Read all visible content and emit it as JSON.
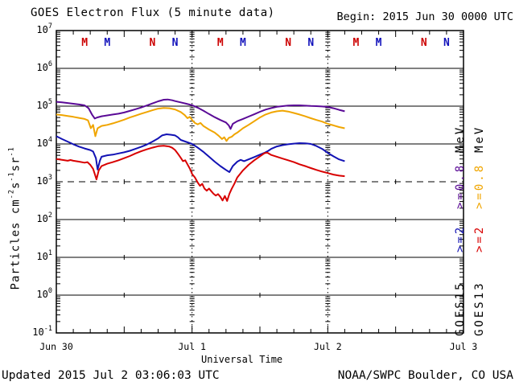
{
  "header": {
    "title": "GOES Electron Flux (5 minute data)",
    "begin_label": "Begin: 2015 Jun 30 0000 UTC"
  },
  "footer": {
    "updated": "Updated 2015 Jul  2 03:06:03 UTC",
    "source": "NOAA/SWPC Boulder, CO USA"
  },
  "legend": {
    "goes15": {
      "sat": "GOES15",
      "e2": ">=2",
      "e08": ">=0.8",
      "unit": "MeV"
    },
    "goes13": {
      "sat": "GOES13",
      "e2": ">=2",
      "e08": ">=0.8",
      "unit": "MeV"
    }
  },
  "chart_data": {
    "type": "line",
    "title": "GOES Electron Flux (5 minute data)",
    "xlabel": "Universal Time",
    "ylabel": "Particles cm-2 s-1 sr-1",
    "ylabel_parts": [
      {
        "t": "Particles cm",
        "sup": false
      },
      {
        "t": "-2",
        "sup": true
      },
      {
        "t": "s",
        "sup": false
      },
      {
        "t": "-1",
        "sup": true
      },
      {
        "t": "sr",
        "sup": false
      },
      {
        "t": "-1",
        "sup": true
      }
    ],
    "x_unit": "hours since 2015 Jun 30 0000 UTC",
    "xlim_hours": [
      0,
      72
    ],
    "y_scale": "log10",
    "ylim": [
      0.1,
      10000000
    ],
    "y_tick_exponents": [
      7,
      6,
      5,
      4,
      3,
      2,
      1,
      0,
      -1
    ],
    "solid_gridlines_log10": [
      6,
      5,
      4,
      2,
      1,
      0
    ],
    "dashed_gridlines_log10": [
      3
    ],
    "dotted_vlines_hours": [
      24,
      48
    ],
    "x_minor_tick_hours": 3,
    "x_ticks": [
      {
        "hour": 0,
        "label": "Jun 30"
      },
      {
        "hour": 24,
        "label": "Jul 1"
      },
      {
        "hour": 48,
        "label": "Jul 2"
      },
      {
        "hour": 72,
        "label": "Jul 3"
      }
    ],
    "markers": [
      {
        "hour": 5,
        "label": "M",
        "color": "#cc0000"
      },
      {
        "hour": 9,
        "label": "M",
        "color": "#1111bb"
      },
      {
        "hour": 17,
        "label": "N",
        "color": "#cc0000"
      },
      {
        "hour": 21,
        "label": "N",
        "color": "#1111bb"
      },
      {
        "hour": 29,
        "label": "M",
        "color": "#cc0000"
      },
      {
        "hour": 33,
        "label": "M",
        "color": "#1111bb"
      },
      {
        "hour": 41,
        "label": "N",
        "color": "#cc0000"
      },
      {
        "hour": 45,
        "label": "N",
        "color": "#1111bb"
      },
      {
        "hour": 53,
        "label": "M",
        "color": "#cc0000"
      },
      {
        "hour": 57,
        "label": "M",
        "color": "#1111bb"
      },
      {
        "hour": 65,
        "label": "N",
        "color": "#cc0000"
      },
      {
        "hour": 69,
        "label": "N",
        "color": "#1111bb"
      }
    ],
    "series": [
      {
        "name": "GOES15 >=0.8 MeV",
        "color": "#5a0a96",
        "points": [
          [
            0,
            130000
          ],
          [
            1,
            126000
          ],
          [
            2,
            121000
          ],
          [
            3,
            116000
          ],
          [
            4,
            111000
          ],
          [
            5,
            105000
          ],
          [
            5.7,
            88000
          ],
          [
            6.3,
            60000
          ],
          [
            6.8,
            47000
          ],
          [
            7.2,
            50000
          ],
          [
            8,
            54000
          ],
          [
            9,
            57000
          ],
          [
            10,
            60000
          ],
          [
            11,
            63000
          ],
          [
            12,
            68000
          ],
          [
            13,
            75000
          ],
          [
            14,
            83000
          ],
          [
            15,
            92000
          ],
          [
            16,
            104000
          ],
          [
            17,
            118000
          ],
          [
            18,
            134000
          ],
          [
            19,
            148000
          ],
          [
            19.7,
            150000
          ],
          [
            20.5,
            143000
          ],
          [
            21,
            136000
          ],
          [
            22,
            126000
          ],
          [
            23,
            116000
          ],
          [
            24,
            106000
          ],
          [
            25,
            91000
          ],
          [
            26,
            76000
          ],
          [
            27,
            62000
          ],
          [
            28,
            51000
          ],
          [
            29,
            43000
          ],
          [
            30,
            37000
          ],
          [
            30.5,
            31000
          ],
          [
            30.8,
            25000
          ],
          [
            31.2,
            34000
          ],
          [
            32,
            40000
          ],
          [
            33,
            46000
          ],
          [
            34,
            53000
          ],
          [
            35,
            61000
          ],
          [
            36,
            71000
          ],
          [
            37,
            81000
          ],
          [
            38,
            89000
          ],
          [
            39,
            96000
          ],
          [
            40,
            100000
          ],
          [
            41,
            104000
          ],
          [
            42,
            105000
          ],
          [
            43,
            105000
          ],
          [
            44,
            103000
          ],
          [
            45,
            101000
          ],
          [
            46,
            100000
          ],
          [
            47,
            98000
          ],
          [
            48,
            95000
          ],
          [
            49,
            88000
          ],
          [
            50,
            80000
          ],
          [
            51,
            73000
          ]
        ]
      },
      {
        "name": "GOES13 >=0.8 MeV",
        "color": "#f0a500",
        "points": [
          [
            0,
            60000
          ],
          [
            1,
            58000
          ],
          [
            2,
            55000
          ],
          [
            3,
            52000
          ],
          [
            4,
            49000
          ],
          [
            5,
            46000
          ],
          [
            5.6,
            42000
          ],
          [
            6.1,
            26000
          ],
          [
            6.5,
            32000
          ],
          [
            6.9,
            16000
          ],
          [
            7.3,
            26000
          ],
          [
            8,
            30000
          ],
          [
            9,
            32000
          ],
          [
            10,
            35000
          ],
          [
            11,
            39000
          ],
          [
            12,
            44000
          ],
          [
            13,
            50000
          ],
          [
            14,
            56000
          ],
          [
            15,
            63000
          ],
          [
            16,
            70000
          ],
          [
            17,
            78000
          ],
          [
            18,
            86000
          ],
          [
            19,
            90000
          ],
          [
            20,
            88000
          ],
          [
            21,
            82000
          ],
          [
            22,
            70000
          ],
          [
            22.7,
            58000
          ],
          [
            23.2,
            48000
          ],
          [
            23.6,
            52000
          ],
          [
            24,
            43000
          ],
          [
            24.5,
            36000
          ],
          [
            25,
            33000
          ],
          [
            25.5,
            36000
          ],
          [
            26,
            30000
          ],
          [
            27,
            24000
          ],
          [
            28,
            20000
          ],
          [
            28.7,
            16500
          ],
          [
            29.3,
            13500
          ],
          [
            29.7,
            15000
          ],
          [
            30.1,
            12000
          ],
          [
            30.5,
            14500
          ],
          [
            31,
            15500
          ],
          [
            31.5,
            18000
          ],
          [
            32,
            20000
          ],
          [
            33,
            26000
          ],
          [
            34,
            32000
          ],
          [
            35,
            40000
          ],
          [
            36,
            50000
          ],
          [
            37,
            60000
          ],
          [
            38,
            68000
          ],
          [
            39,
            73000
          ],
          [
            40,
            76000
          ],
          [
            41,
            72000
          ],
          [
            42,
            66000
          ],
          [
            43,
            60000
          ],
          [
            44,
            54000
          ],
          [
            45,
            48000
          ],
          [
            46,
            43000
          ],
          [
            47,
            39000
          ],
          [
            48,
            34000
          ],
          [
            49,
            31000
          ],
          [
            50,
            28000
          ],
          [
            51,
            26000
          ]
        ]
      },
      {
        "name": "GOES15 >=2 MeV",
        "color": "#1212b4",
        "points": [
          [
            0,
            16000
          ],
          [
            1,
            13500
          ],
          [
            2,
            11500
          ],
          [
            3,
            9800
          ],
          [
            4,
            8500
          ],
          [
            5,
            7600
          ],
          [
            6,
            6900
          ],
          [
            6.5,
            6300
          ],
          [
            7,
            4200
          ],
          [
            7.3,
            2100
          ],
          [
            7.7,
            3600
          ],
          [
            8,
            4600
          ],
          [
            9,
            5000
          ],
          [
            10,
            5200
          ],
          [
            11,
            5600
          ],
          [
            12,
            6000
          ],
          [
            13,
            6600
          ],
          [
            14,
            7400
          ],
          [
            15,
            8400
          ],
          [
            16,
            9600
          ],
          [
            17,
            11500
          ],
          [
            18,
            14000
          ],
          [
            18.7,
            16800
          ],
          [
            19.5,
            18000
          ],
          [
            20.3,
            17500
          ],
          [
            21,
            16800
          ],
          [
            21.5,
            15000
          ],
          [
            22,
            12800
          ],
          [
            23,
            11300
          ],
          [
            24,
            10000
          ],
          [
            25,
            8000
          ],
          [
            26,
            6200
          ],
          [
            27,
            4600
          ],
          [
            28,
            3400
          ],
          [
            29,
            2600
          ],
          [
            30,
            2050
          ],
          [
            30.6,
            1800
          ],
          [
            31.2,
            2600
          ],
          [
            32,
            3400
          ],
          [
            32.6,
            3800
          ],
          [
            33.2,
            3500
          ],
          [
            34,
            3900
          ],
          [
            35,
            4500
          ],
          [
            36,
            5200
          ],
          [
            36.8,
            5800
          ],
          [
            37.5,
            6600
          ],
          [
            38,
            7400
          ],
          [
            39,
            8600
          ],
          [
            40,
            9300
          ],
          [
            41,
            9800
          ],
          [
            42,
            10200
          ],
          [
            43,
            10500
          ],
          [
            44,
            10400
          ],
          [
            45,
            10000
          ],
          [
            46,
            8800
          ],
          [
            47,
            7400
          ],
          [
            48,
            5800
          ],
          [
            49,
            4700
          ],
          [
            50,
            3900
          ],
          [
            51,
            3500
          ]
        ]
      },
      {
        "name": "GOES13 >=2 MeV",
        "color": "#d80000",
        "points": [
          [
            0,
            4000
          ],
          [
            1,
            3800
          ],
          [
            2,
            3600
          ],
          [
            2.5,
            3750
          ],
          [
            3,
            3600
          ],
          [
            4,
            3400
          ],
          [
            5,
            3200
          ],
          [
            5.5,
            3300
          ],
          [
            6,
            2800
          ],
          [
            6.5,
            2200
          ],
          [
            6.8,
            1600
          ],
          [
            7.1,
            1150
          ],
          [
            7.5,
            2000
          ],
          [
            8,
            2600
          ],
          [
            9,
            3000
          ],
          [
            10,
            3300
          ],
          [
            11,
            3700
          ],
          [
            12,
            4200
          ],
          [
            13,
            4800
          ],
          [
            14,
            5600
          ],
          [
            15,
            6400
          ],
          [
            16,
            7200
          ],
          [
            17,
            8000
          ],
          [
            18,
            8700
          ],
          [
            19,
            9000
          ],
          [
            20,
            8500
          ],
          [
            20.5,
            7900
          ],
          [
            21,
            6900
          ],
          [
            21.5,
            5500
          ],
          [
            22,
            4300
          ],
          [
            22.4,
            3500
          ],
          [
            22.8,
            3700
          ],
          [
            23.3,
            2700
          ],
          [
            23.7,
            2100
          ],
          [
            24,
            1600
          ],
          [
            24.5,
            1300
          ],
          [
            25,
            950
          ],
          [
            25.4,
            780
          ],
          [
            25.8,
            880
          ],
          [
            26.2,
            660
          ],
          [
            26.6,
            580
          ],
          [
            27,
            660
          ],
          [
            27.4,
            560
          ],
          [
            27.8,
            480
          ],
          [
            28.2,
            430
          ],
          [
            28.6,
            470
          ],
          [
            29,
            400
          ],
          [
            29.4,
            320
          ],
          [
            29.8,
            420
          ],
          [
            30.2,
            310
          ],
          [
            30.6,
            480
          ],
          [
            31,
            650
          ],
          [
            31.5,
            900
          ],
          [
            32,
            1300
          ],
          [
            33,
            2000
          ],
          [
            34,
            2800
          ],
          [
            35,
            3700
          ],
          [
            36,
            4700
          ],
          [
            36.8,
            5700
          ],
          [
            37.3,
            5900
          ],
          [
            38,
            5100
          ],
          [
            39,
            4600
          ],
          [
            40,
            4100
          ],
          [
            41,
            3700
          ],
          [
            42,
            3300
          ],
          [
            43,
            2900
          ],
          [
            44,
            2600
          ],
          [
            45,
            2300
          ],
          [
            46,
            2050
          ],
          [
            47,
            1850
          ],
          [
            48,
            1700
          ],
          [
            49,
            1550
          ],
          [
            50,
            1450
          ],
          [
            51,
            1400
          ]
        ]
      }
    ]
  }
}
